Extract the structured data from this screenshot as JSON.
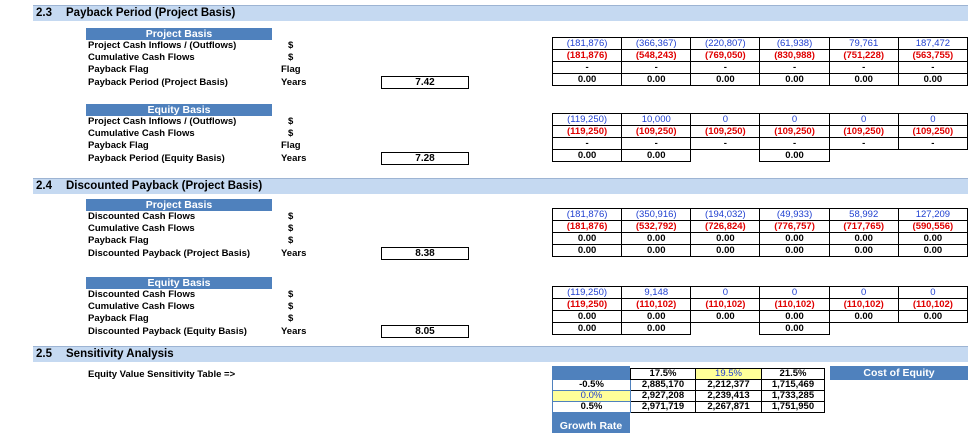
{
  "sections": {
    "s23": {
      "num": "2.3",
      "title": "Payback Period (Project Basis)"
    },
    "s24": {
      "num": "2.4",
      "title": "Discounted Payback (Project Basis)"
    },
    "s25": {
      "num": "2.5",
      "title": "Sensitivity Analysis"
    }
  },
  "payback_project": {
    "header": "Project Basis",
    "rows": [
      {
        "label": "Project Cash Inflows / (Outflows)",
        "unit": "$"
      },
      {
        "label": "Cumulative Cash Flows",
        "unit": "$"
      },
      {
        "label": "Payback Flag",
        "unit": "Flag"
      },
      {
        "label": "Payback Period (Project Basis)",
        "unit": "Years"
      }
    ],
    "result": "7.42",
    "grid": [
      [
        "(181,876)",
        "(366,367)",
        "(220,807)",
        "(61,938)",
        "79,761",
        "187,472"
      ],
      [
        "(181,876)",
        "(548,243)",
        "(769,050)",
        "(830,988)",
        "(751,228)",
        "(563,755)"
      ],
      [
        "-",
        "-",
        "-",
        "-",
        "-",
        "-"
      ],
      [
        "0.00",
        "0.00",
        "0.00",
        "0.00",
        "0.00",
        "0.00"
      ]
    ]
  },
  "payback_equity": {
    "header": "Equity Basis",
    "rows": [
      {
        "label": "Project Cash Inflows / (Outflows)",
        "unit": "$"
      },
      {
        "label": "Cumulative Cash Flows",
        "unit": "$"
      },
      {
        "label": "Payback Flag",
        "unit": "Flag"
      },
      {
        "label": "Payback Period (Equity Basis)",
        "unit": "Years"
      }
    ],
    "result": "7.28",
    "grid": [
      [
        "(119,250)",
        "10,000",
        "0",
        "0",
        "0",
        "0"
      ],
      [
        "(119,250)",
        "(109,250)",
        "(109,250)",
        "(109,250)",
        "(109,250)",
        "(109,250)"
      ],
      [
        "-",
        "-",
        "-",
        "-",
        "-",
        "-"
      ],
      [
        "0.00",
        "0.00",
        "",
        "0.00",
        "",
        ""
      ]
    ]
  },
  "disc_project": {
    "header": "Project Basis",
    "rows": [
      {
        "label": "Discounted Cash Flows",
        "unit": "$"
      },
      {
        "label": "Cumulative Cash Flows",
        "unit": "$"
      },
      {
        "label": "Payback Flag",
        "unit": "$"
      },
      {
        "label": "Discounted Payback (Project Basis)",
        "unit": "Years"
      }
    ],
    "result": "8.38",
    "grid": [
      [
        "(181,876)",
        "(350,916)",
        "(194,032)",
        "(49,933)",
        "58,992",
        "127,209"
      ],
      [
        "(181,876)",
        "(532,792)",
        "(726,824)",
        "(776,757)",
        "(717,765)",
        "(590,556)"
      ],
      [
        "0.00",
        "0.00",
        "0.00",
        "0.00",
        "0.00",
        "0.00"
      ],
      [
        "0.00",
        "0.00",
        "0.00",
        "0.00",
        "0.00",
        "0.00"
      ]
    ]
  },
  "disc_equity": {
    "header": "Equity Basis",
    "rows": [
      {
        "label": "Discounted Cash Flows",
        "unit": "$"
      },
      {
        "label": "Cumulative Cash Flows",
        "unit": "$"
      },
      {
        "label": "Payback Flag",
        "unit": "$"
      },
      {
        "label": "Discounted Payback (Equity Basis)",
        "unit": "Years"
      }
    ],
    "result": "8.05",
    "grid": [
      [
        "(119,250)",
        "9,148",
        "0",
        "0",
        "0",
        "0"
      ],
      [
        "(119,250)",
        "(110,102)",
        "(110,102)",
        "(110,102)",
        "(110,102)",
        "(110,102)"
      ],
      [
        "0.00",
        "0.00",
        "0.00",
        "0.00",
        "0.00",
        "0.00"
      ],
      [
        "0.00",
        "0.00",
        "",
        "0.00",
        "",
        ""
      ]
    ]
  },
  "sensitivity": {
    "label": "Equity Value Sensitivity Table =>",
    "cost_of_equity_label": "Cost of Equity",
    "growth_rate_label": "Growth Rate",
    "coe_headers": [
      "17.5%",
      "19.5%",
      "21.5%"
    ],
    "growth_rows": [
      {
        "rate": "-0.5%",
        "values": [
          "2,885,170",
          "2,212,377",
          "1,715,469"
        ]
      },
      {
        "rate": "0.0%",
        "values": [
          "2,927,208",
          "2,239,413",
          "1,733,285"
        ]
      },
      {
        "rate": "0.5%",
        "values": [
          "2,971,719",
          "2,267,871",
          "1,751,950"
        ]
      }
    ]
  },
  "colors": {
    "section_bar": "#c5d9f1",
    "basis_header": "#4f81bd",
    "highlight": "#ffff99",
    "blue_text": "#1f3fd0",
    "red_text": "#e00000"
  }
}
